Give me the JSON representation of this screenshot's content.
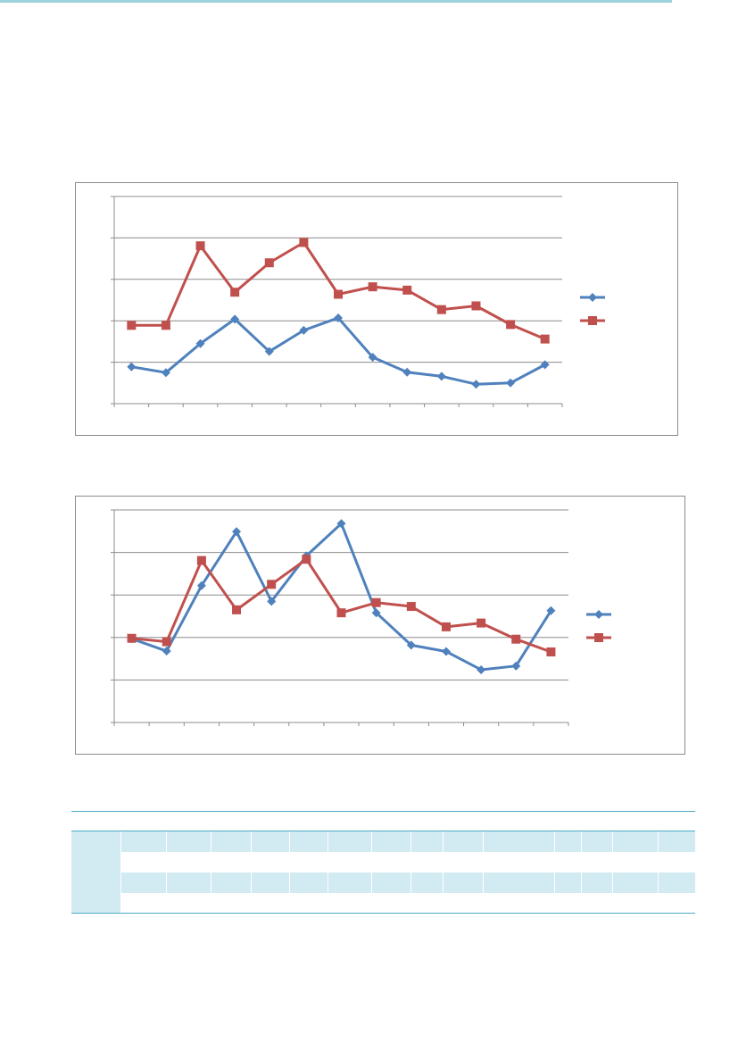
{
  "chart_data": [
    {
      "type": "line",
      "categories": [
        "",
        "",
        "",
        "",
        "",
        "",
        "",
        "",
        "",
        "",
        "",
        "",
        ""
      ],
      "ylim": [
        0,
        5
      ],
      "grid": true,
      "legend": "right",
      "series": [
        {
          "color": "#4f81bd",
          "marker": "diamond",
          "values": [
            0.89,
            0.75,
            1.45,
            2.04,
            1.26,
            1.77,
            2.07,
            1.12,
            0.76,
            0.66,
            0.47,
            0.5,
            0.94
          ]
        },
        {
          "color": "#c0504d",
          "marker": "square",
          "values": [
            1.89,
            1.89,
            3.81,
            2.69,
            3.4,
            3.89,
            2.64,
            2.82,
            2.74,
            2.27,
            2.36,
            1.91,
            1.56
          ]
        }
      ]
    },
    {
      "type": "line",
      "categories": [
        "",
        "",
        "",
        "",
        "",
        "",
        "",
        "",
        "",
        "",
        "",
        "",
        ""
      ],
      "ylim": [
        0,
        5
      ],
      "grid": true,
      "legend": "right",
      "series": [
        {
          "color": "#4f81bd",
          "marker": "diamond",
          "values": [
            1.97,
            1.68,
            3.22,
            4.49,
            2.85,
            3.92,
            4.68,
            2.58,
            1.82,
            1.67,
            1.24,
            1.33,
            2.63
          ]
        },
        {
          "color": "#c0504d",
          "marker": "square",
          "values": [
            1.98,
            1.9,
            3.81,
            2.65,
            3.25,
            3.84,
            2.58,
            2.82,
            2.73,
            2.25,
            2.34,
            1.96,
            1.66
          ]
        }
      ]
    }
  ],
  "table": {
    "headers": [
      "",
      "",
      "",
      "",
      "",
      "",
      "",
      "",
      "",
      "",
      "",
      "",
      "",
      "",
      ""
    ],
    "rows": [
      [
        "",
        "",
        "",
        "",
        "",
        "",
        "",
        "",
        "",
        "",
        "",
        "",
        "",
        "",
        ""
      ],
      [
        "",
        "",
        "",
        "",
        "",
        "",
        "",
        "",
        "",
        "",
        "",
        "",
        "",
        "",
        ""
      ],
      [
        "",
        "",
        "",
        "",
        "",
        "",
        "",
        "",
        "",
        "",
        "",
        "",
        "",
        "",
        ""
      ],
      [
        "",
        "",
        "",
        "",
        "",
        "",
        "",
        "",
        "",
        "",
        "",
        "",
        "",
        "",
        ""
      ]
    ]
  }
}
